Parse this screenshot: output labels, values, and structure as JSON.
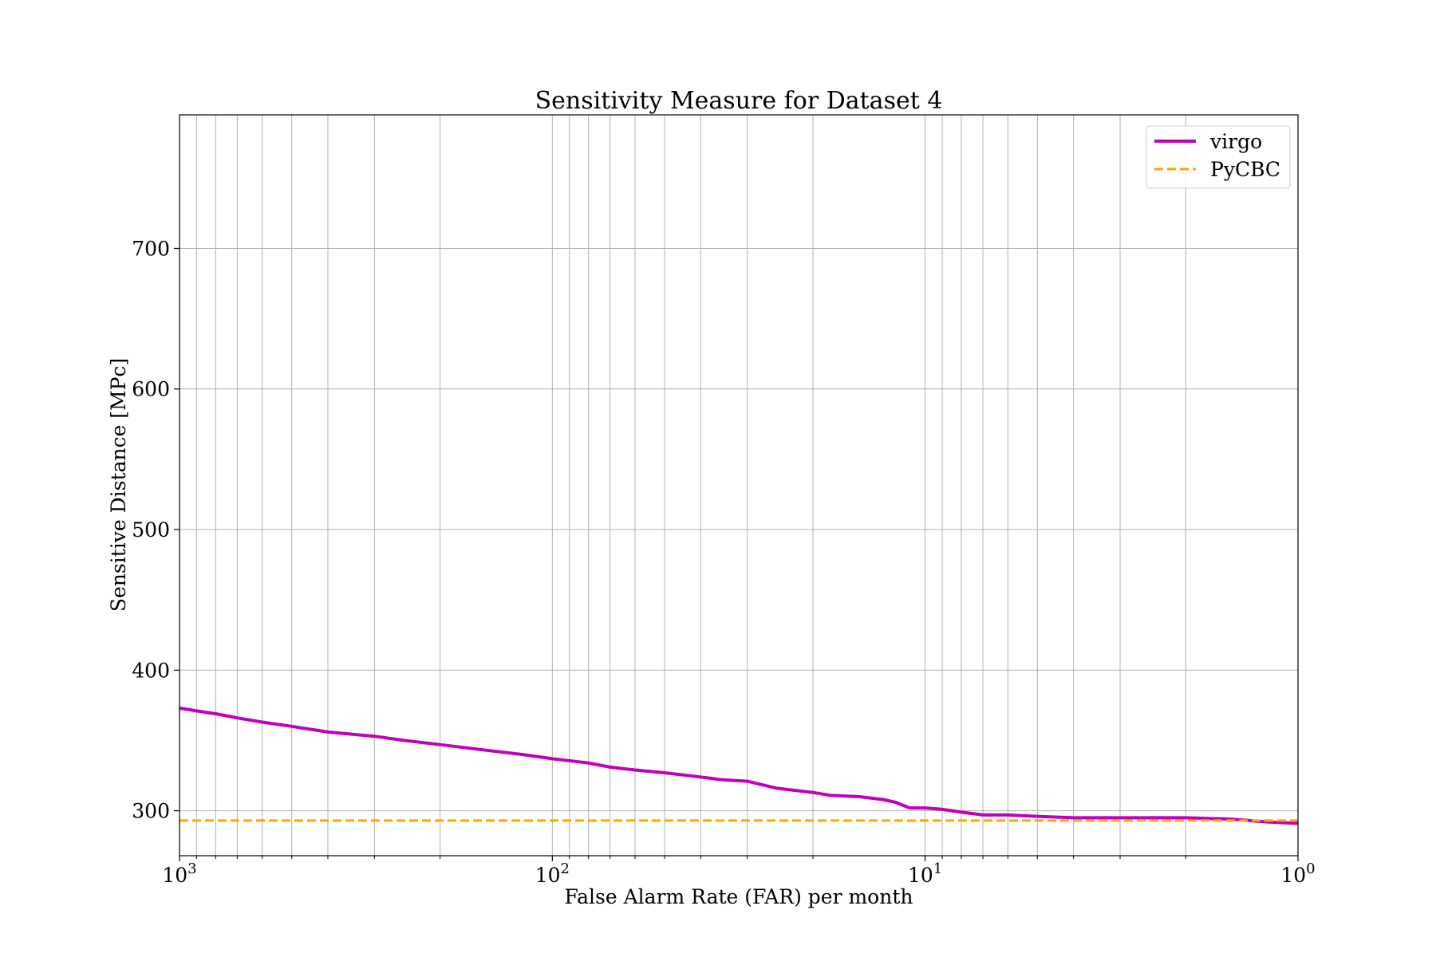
{
  "chart_data": {
    "type": "line",
    "title": "Sensitivity Measure for Dataset 4",
    "xlabel": "False Alarm Rate (FAR) per month",
    "ylabel": "Sensitive Distance [MPc]",
    "x_scale": "log",
    "x_inverted": true,
    "xlim": [
      1000,
      1
    ],
    "ylim": [
      268,
      795
    ],
    "x_ticks": [
      {
        "value": 1000,
        "base": "10",
        "exp": "3"
      },
      {
        "value": 100,
        "base": "10",
        "exp": "2"
      },
      {
        "value": 10,
        "base": "10",
        "exp": "1"
      },
      {
        "value": 1,
        "base": "10",
        "exp": "0"
      }
    ],
    "y_ticks": [
      {
        "value": 300,
        "label": "300"
      },
      {
        "value": 400,
        "label": "400"
      },
      {
        "value": 500,
        "label": "500"
      },
      {
        "value": 600,
        "label": "600"
      },
      {
        "value": 700,
        "label": "700"
      }
    ],
    "grid": true,
    "legend": {
      "position": "top-right"
    },
    "series": [
      {
        "name": "virgo",
        "color": "#bf00bf",
        "style": "solid",
        "x": [
          1000,
          900,
          800,
          700,
          600,
          500,
          400,
          300,
          250,
          200,
          150,
          120,
          100,
          80,
          70,
          60,
          50,
          40,
          35,
          30,
          25,
          20,
          18,
          15,
          13,
          12,
          11.5,
          11,
          10,
          9,
          8,
          7,
          6,
          5,
          4,
          3,
          2.5,
          2,
          1.5,
          1.2,
          1
        ],
        "y": [
          373,
          371,
          369,
          366,
          363,
          360,
          356,
          353,
          350,
          347,
          343,
          340,
          337,
          334,
          331,
          329,
          327,
          324,
          322,
          321,
          316,
          313,
          311,
          310,
          308,
          306,
          304,
          302,
          302,
          301,
          299,
          297,
          297,
          296,
          295,
          295,
          295,
          295,
          294,
          292,
          291
        ]
      },
      {
        "name": "PyCBC",
        "color": "#ffa500",
        "style": "dashed",
        "x": [
          1000,
          1
        ],
        "y": [
          293,
          293
        ]
      }
    ]
  }
}
